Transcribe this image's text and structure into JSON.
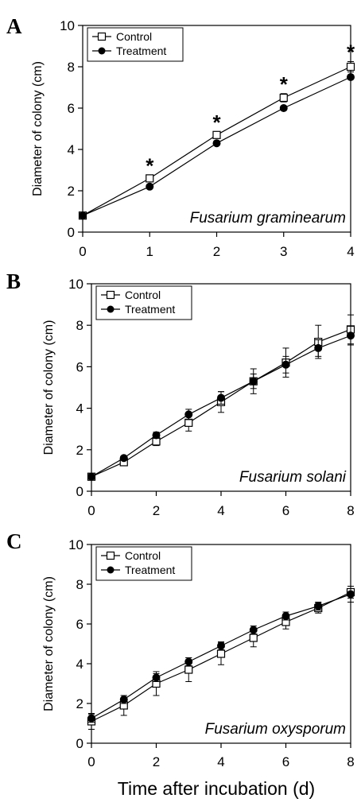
{
  "figure": {
    "x_axis_title": "Time after incubation (d)"
  },
  "chart_data": [
    {
      "panel": "A",
      "type": "line",
      "annotation": "Fusarium graminearum",
      "ylabel": "Diameter of colony (cm)",
      "xlim": [
        0,
        4
      ],
      "ylim": [
        0,
        10
      ],
      "x_ticks": [
        0,
        1,
        2,
        3,
        4
      ],
      "y_ticks": [
        0,
        2,
        4,
        6,
        8,
        10
      ],
      "legend": "top-left",
      "x": [
        0,
        1,
        2,
        3,
        4
      ],
      "series": [
        {
          "name": "Control",
          "marker": "open-square",
          "values": [
            0.8,
            2.6,
            4.7,
            6.5,
            8.0
          ],
          "errors": [
            0.1,
            0.15,
            0.15,
            0.2,
            0.25
          ]
        },
        {
          "name": "Treatment",
          "marker": "filled-circle",
          "values": [
            0.8,
            2.2,
            4.3,
            6.0,
            7.5
          ],
          "errors": [
            0.05,
            0.1,
            0.1,
            0.1,
            0.1
          ]
        }
      ],
      "significance_marks": [
        {
          "x": 1,
          "label": "*"
        },
        {
          "x": 2,
          "label": "*"
        },
        {
          "x": 3,
          "label": "*"
        },
        {
          "x": 4,
          "label": "*"
        }
      ]
    },
    {
      "panel": "B",
      "type": "line",
      "annotation": "Fusarium solani",
      "ylabel": "Diameter of colony (cm)",
      "xlim": [
        0,
        8
      ],
      "ylim": [
        0,
        10
      ],
      "x_ticks": [
        0,
        2,
        4,
        6,
        8
      ],
      "y_ticks": [
        0,
        2,
        4,
        6,
        8,
        10
      ],
      "legend": "top-left",
      "x": [
        0,
        1,
        2,
        3,
        4,
        5,
        6,
        7,
        8
      ],
      "series": [
        {
          "name": "Control",
          "marker": "open-square",
          "values": [
            0.7,
            1.4,
            2.4,
            3.3,
            4.3,
            5.3,
            6.2,
            7.2,
            7.8
          ],
          "errors": [
            0.05,
            0.15,
            0.2,
            0.4,
            0.5,
            0.6,
            0.7,
            0.8,
            0.7
          ]
        },
        {
          "name": "Treatment",
          "marker": "filled-circle",
          "values": [
            0.7,
            1.6,
            2.7,
            3.7,
            4.5,
            5.3,
            6.1,
            6.9,
            7.5
          ],
          "errors": [
            0.05,
            0.1,
            0.15,
            0.25,
            0.3,
            0.35,
            0.4,
            0.4,
            0.45
          ]
        }
      ]
    },
    {
      "panel": "C",
      "type": "line",
      "annotation": "Fusarium oxysporum",
      "ylabel": "Diameter of colony (cm)",
      "xlim": [
        0,
        8
      ],
      "ylim": [
        0,
        10
      ],
      "x_ticks": [
        0,
        2,
        4,
        6,
        8
      ],
      "y_ticks": [
        0,
        2,
        4,
        6,
        8,
        10
      ],
      "legend": "top-left",
      "x": [
        0,
        1,
        2,
        3,
        4,
        5,
        6,
        7,
        8
      ],
      "series": [
        {
          "name": "Control",
          "marker": "open-square",
          "values": [
            1.1,
            1.9,
            3.0,
            3.7,
            4.5,
            5.3,
            6.1,
            6.8,
            7.6
          ],
          "errors": [
            0.4,
            0.5,
            0.6,
            0.6,
            0.55,
            0.45,
            0.35,
            0.25,
            0.3
          ]
        },
        {
          "name": "Treatment",
          "marker": "filled-circle",
          "values": [
            1.25,
            2.2,
            3.3,
            4.1,
            4.9,
            5.7,
            6.4,
            6.9,
            7.5
          ],
          "errors": [
            0.2,
            0.2,
            0.2,
            0.2,
            0.2,
            0.2,
            0.2,
            0.2,
            0.4
          ]
        }
      ]
    }
  ]
}
